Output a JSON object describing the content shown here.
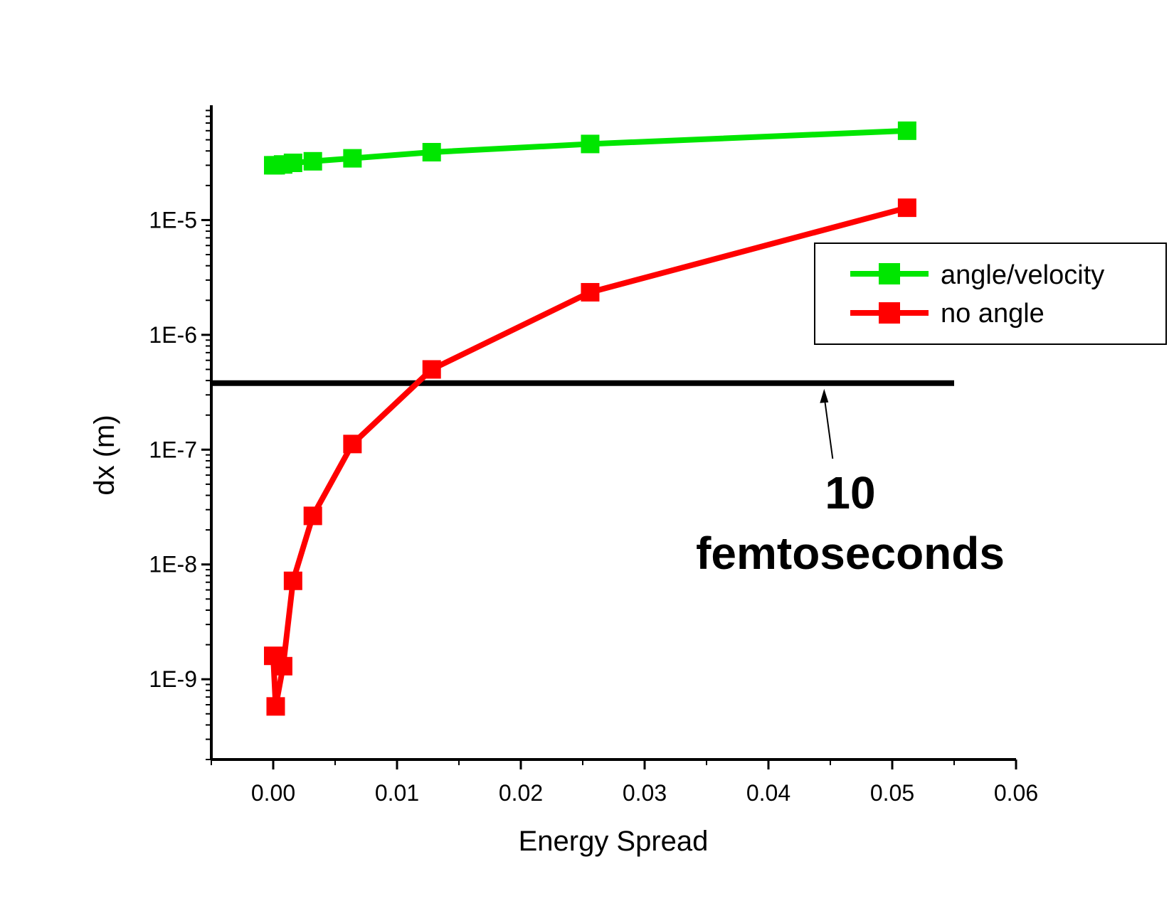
{
  "chart_data": {
    "type": "line",
    "title": "",
    "xlabel": "Energy Spread",
    "ylabel": "dx (m)",
    "xlim": [
      -0.005,
      0.06
    ],
    "ylim": [
      2e-10,
      0.0001
    ],
    "yscale": "log",
    "xticks": [
      0.0,
      0.01,
      0.02,
      0.03,
      0.04,
      0.05,
      0.06
    ],
    "xtick_labels": [
      "0.00",
      "0.01",
      "0.02",
      "0.03",
      "0.04",
      "0.05",
      "0.06"
    ],
    "yticks": [
      1e-09,
      1e-08,
      1e-07,
      1e-06,
      1e-05
    ],
    "ytick_labels": [
      "1E-9",
      "1E-8",
      "1E-7",
      "1E-6",
      "1E-5"
    ],
    "legend_position": "upper-right",
    "grid": false,
    "series": [
      {
        "name": "angle/velocity",
        "color": "#00e600",
        "marker": "square",
        "x": [
          0.0,
          0.0002,
          0.0008,
          0.0016,
          0.0032,
          0.0064,
          0.0128,
          0.0256,
          0.0512
        ],
        "y": [
          3e-05,
          3e-05,
          3.05e-05,
          3.15e-05,
          3.25e-05,
          3.45e-05,
          3.9e-05,
          4.6e-05,
          6e-05
        ]
      },
      {
        "name": "no angle",
        "color": "#ff0000",
        "marker": "square",
        "x": [
          0.0,
          0.0002,
          0.0008,
          0.0016,
          0.0032,
          0.0064,
          0.0128,
          0.0256,
          0.0512
        ],
        "y": [
          1.6e-09,
          5.8e-10,
          1.3e-09,
          7.2e-09,
          2.65e-08,
          1.12e-07,
          5e-07,
          2.35e-06,
          1.28e-05
        ]
      }
    ],
    "reference_line": {
      "y": 3.8e-07,
      "x_range": [
        -0.005,
        0.055
      ],
      "color": "#000000"
    },
    "annotation": {
      "line1": "10",
      "line2": "femtoseconds",
      "arrow_x": 0.0445
    }
  }
}
